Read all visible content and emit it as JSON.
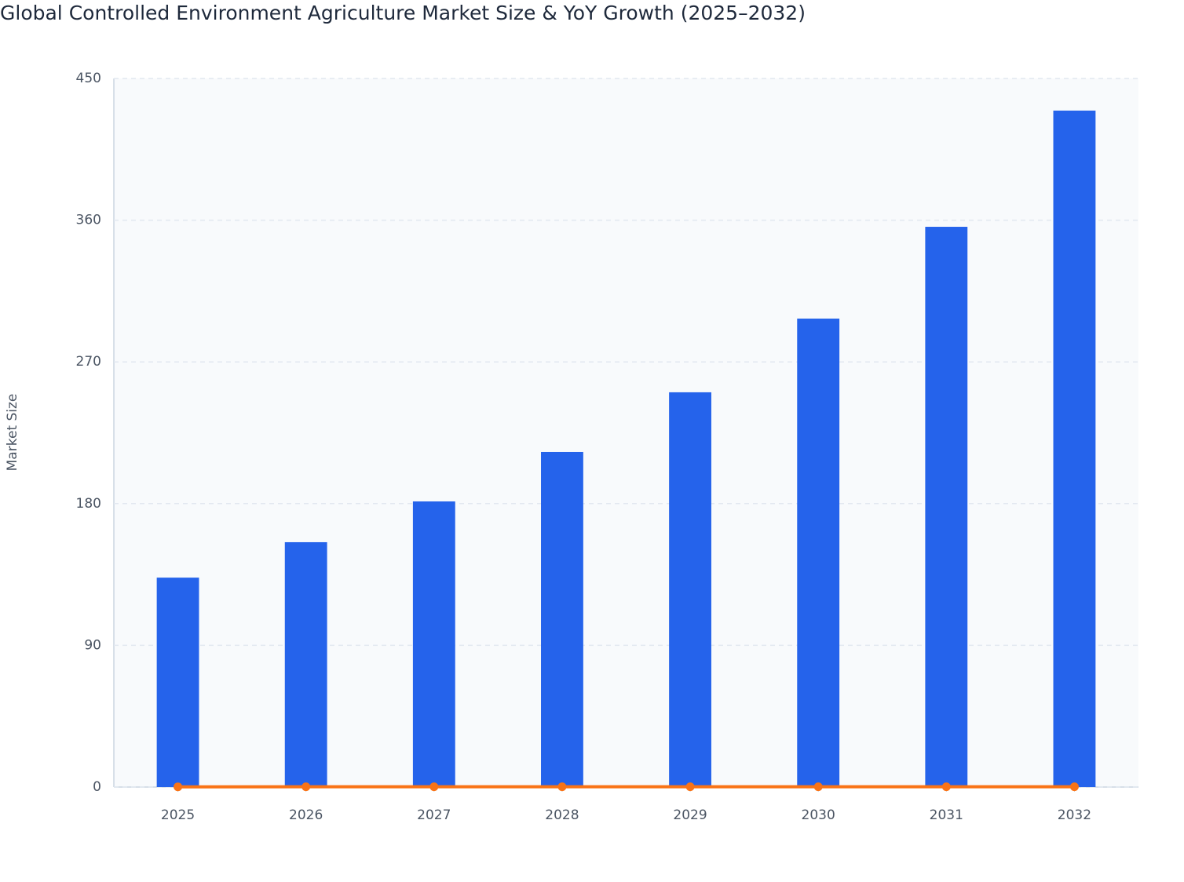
{
  "chart_data": {
    "type": "bar+line",
    "title": "Global Controlled Environment Agriculture Market Size & YoY Growth (2025–2032)",
    "y_label": "Market Size",
    "categories": [
      "2025",
      "2026",
      "2027",
      "2028",
      "2029",
      "2030",
      "2031",
      "2032"
    ],
    "series": [
      {
        "type": "bar",
        "color": "#2563eb",
        "values": [
          133,
          155.5,
          181.4,
          212.8,
          250.7,
          297.5,
          355.8,
          429.6
        ]
      },
      {
        "type": "line",
        "color": "#f97316",
        "values": [
          0.15,
          0.169,
          0.167,
          0.172,
          0.178,
          0.187,
          0.196,
          0.207
        ]
      }
    ],
    "ylim": [
      0,
      450
    ],
    "yticks": [
      0,
      90,
      180,
      270,
      360,
      450
    ],
    "grid": true
  }
}
